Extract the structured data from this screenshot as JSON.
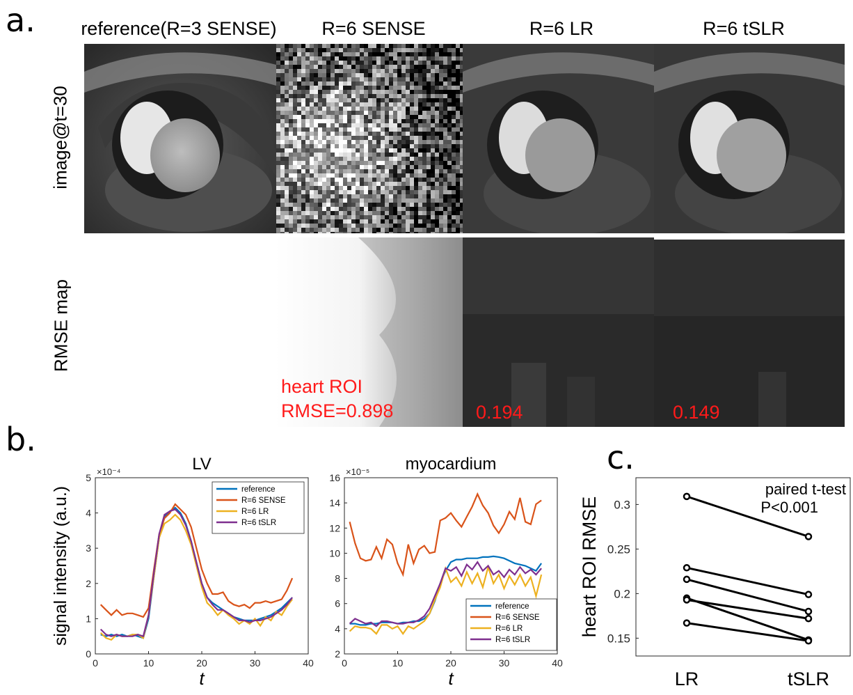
{
  "panel_a": {
    "letter": "a.",
    "column_titles": [
      "reference(R=3 SENSE)",
      "R=6 SENSE",
      "R=6 LR",
      "R=6 tSLR"
    ],
    "row_labels": [
      "image@t=30",
      "RMSE map"
    ],
    "roi_label": "heart ROI",
    "rmse_values": [
      "RMSE=0.898",
      "0.194",
      "0.149"
    ]
  },
  "panel_b": {
    "letter": "b."
  },
  "panel_c": {
    "letter": "c."
  },
  "colors": {
    "reference": "#0072BD",
    "sense": "#D95319",
    "lr": "#EDB120",
    "tslr": "#7E2F8E",
    "annotation_red": "#ff1a1a"
  },
  "chart_data": [
    {
      "type": "line",
      "title": "LV",
      "xlabel": "t",
      "ylabel": "signal intensity (a.u.)",
      "exponent_label": "×10⁻⁴",
      "xlim": [
        0,
        40
      ],
      "ylim": [
        0,
        5
      ],
      "xticks": [
        0,
        10,
        20,
        30,
        40
      ],
      "yticks": [
        0,
        1,
        2,
        3,
        4,
        5
      ],
      "legend_position": "top-right",
      "x": [
        1,
        2,
        3,
        4,
        5,
        6,
        7,
        8,
        9,
        10,
        11,
        12,
        13,
        14,
        15,
        16,
        17,
        18,
        19,
        20,
        21,
        22,
        23,
        24,
        25,
        26,
        27,
        28,
        29,
        30,
        31,
        32,
        33,
        34,
        35,
        36,
        37
      ],
      "series": [
        {
          "name": "reference",
          "color": "#0072BD",
          "values": [
            0.55,
            0.5,
            0.55,
            0.5,
            0.55,
            0.5,
            0.55,
            0.5,
            0.45,
            1.0,
            2.2,
            3.3,
            3.9,
            4.05,
            4.15,
            4.0,
            3.7,
            3.2,
            2.6,
            2.0,
            1.6,
            1.45,
            1.35,
            1.25,
            1.15,
            1.05,
            1.0,
            0.95,
            0.95,
            0.95,
            1.0,
            1.05,
            1.1,
            1.2,
            1.3,
            1.45,
            1.6
          ]
        },
        {
          "name": "R=6 SENSE",
          "color": "#D95319",
          "values": [
            1.4,
            1.25,
            1.1,
            1.25,
            1.1,
            1.15,
            1.15,
            1.1,
            1.05,
            1.3,
            2.4,
            3.4,
            3.85,
            4.0,
            4.25,
            4.1,
            3.95,
            3.6,
            3.0,
            2.4,
            2.0,
            1.7,
            1.7,
            1.75,
            1.5,
            1.4,
            1.35,
            1.4,
            1.3,
            1.45,
            1.45,
            1.5,
            1.45,
            1.5,
            1.55,
            1.8,
            2.15
          ]
        },
        {
          "name": "R=6 LR",
          "color": "#EDB120",
          "values": [
            0.6,
            0.45,
            0.4,
            0.55,
            0.5,
            0.5,
            0.55,
            0.55,
            0.45,
            1.1,
            2.2,
            3.3,
            3.7,
            3.8,
            3.95,
            3.8,
            3.5,
            3.1,
            2.5,
            1.9,
            1.45,
            1.3,
            1.1,
            1.25,
            1.1,
            1.0,
            0.85,
            0.95,
            0.85,
            1.0,
            0.8,
            1.05,
            0.95,
            1.2,
            1.1,
            1.35,
            1.55
          ]
        },
        {
          "name": "R=6 tSLR",
          "color": "#7E2F8E",
          "values": [
            0.7,
            0.55,
            0.5,
            0.55,
            0.5,
            0.5,
            0.5,
            0.55,
            0.5,
            1.1,
            2.3,
            3.4,
            3.95,
            4.05,
            4.1,
            3.95,
            3.65,
            3.2,
            2.6,
            2.0,
            1.6,
            1.4,
            1.25,
            1.25,
            1.15,
            1.05,
            0.95,
            0.95,
            0.9,
            0.95,
            0.95,
            1.0,
            1.05,
            1.15,
            1.25,
            1.4,
            1.6
          ]
        }
      ]
    },
    {
      "type": "line",
      "title": "myocardium",
      "xlabel": "t",
      "ylabel": "",
      "exponent_label": "×10⁻⁵",
      "xlim": [
        0,
        40
      ],
      "ylim": [
        2,
        16
      ],
      "xticks": [
        0,
        10,
        20,
        30,
        40
      ],
      "yticks": [
        2,
        4,
        6,
        8,
        10,
        12,
        14,
        16
      ],
      "legend_position": "bottom-right",
      "x": [
        1,
        2,
        3,
        4,
        5,
        6,
        7,
        8,
        9,
        10,
        11,
        12,
        13,
        14,
        15,
        16,
        17,
        18,
        19,
        20,
        21,
        22,
        23,
        24,
        25,
        26,
        27,
        28,
        29,
        30,
        31,
        32,
        33,
        34,
        35,
        36,
        37
      ],
      "series": [
        {
          "name": "reference",
          "color": "#0072BD",
          "values": [
            4.4,
            4.4,
            4.3,
            4.3,
            4.4,
            4.4,
            4.5,
            4.5,
            4.5,
            4.4,
            4.5,
            4.5,
            4.6,
            4.6,
            4.8,
            5.2,
            6.2,
            7.6,
            8.6,
            9.3,
            9.5,
            9.5,
            9.6,
            9.6,
            9.6,
            9.7,
            9.7,
            9.75,
            9.7,
            9.6,
            9.4,
            9.2,
            9.1,
            9.0,
            8.8,
            8.6,
            9.2
          ]
        },
        {
          "name": "R=6 SENSE",
          "color": "#D95319",
          "values": [
            12.5,
            10.8,
            9.6,
            9.4,
            9.5,
            10.5,
            9.6,
            11.1,
            10.7,
            9.2,
            8.3,
            10.7,
            9.2,
            10.3,
            10.6,
            10.0,
            10.1,
            12.6,
            12.8,
            13.2,
            12.6,
            12.1,
            12.9,
            13.7,
            14.7,
            13.8,
            13.2,
            12.2,
            11.6,
            12.3,
            13.3,
            12.7,
            14.4,
            12.5,
            12.3,
            13.9,
            14.2
          ]
        },
        {
          "name": "R=6 LR",
          "color": "#EDB120",
          "values": [
            3.8,
            4.2,
            4.1,
            4.1,
            4.0,
            3.6,
            4.3,
            4.3,
            4.0,
            4.2,
            3.6,
            4.2,
            4.0,
            4.3,
            4.6,
            5.2,
            6.3,
            7.3,
            8.8,
            7.7,
            8.1,
            7.4,
            8.5,
            7.6,
            8.4,
            7.3,
            8.9,
            7.6,
            8.3,
            7.2,
            8.2,
            7.5,
            8.3,
            7.4,
            8.1,
            6.6,
            8.3
          ]
        },
        {
          "name": "R=6 tSLR",
          "color": "#7E2F8E",
          "values": [
            4.4,
            4.8,
            4.6,
            4.4,
            4.5,
            4.2,
            4.6,
            4.6,
            4.5,
            4.4,
            4.4,
            4.5,
            4.5,
            4.7,
            5.0,
            5.6,
            6.6,
            7.6,
            8.8,
            8.6,
            8.9,
            8.2,
            9.1,
            8.7,
            9.3,
            8.6,
            9.0,
            8.3,
            8.6,
            8.1,
            8.7,
            8.3,
            8.9,
            8.4,
            8.7,
            8.3,
            8.8
          ]
        }
      ]
    },
    {
      "type": "scatter",
      "title": "",
      "xlabel": "",
      "ylabel": "heart ROI RMSE",
      "categories": [
        "LR",
        "tSLR"
      ],
      "ylim": [
        0.13,
        0.33
      ],
      "yticks": [
        0.15,
        0.2,
        0.25,
        0.3
      ],
      "ytick_labels": [
        "0.15",
        "0.2",
        "0.25",
        "0.3"
      ],
      "annotation": [
        "paired t-test",
        "P<0.001"
      ],
      "pairs": [
        {
          "LR": 0.309,
          "tSLR": 0.264
        },
        {
          "LR": 0.229,
          "tSLR": 0.199
        },
        {
          "LR": 0.216,
          "tSLR": 0.18
        },
        {
          "LR": 0.195,
          "tSLR": 0.148
        },
        {
          "LR": 0.193,
          "tSLR": 0.172
        },
        {
          "LR": 0.167,
          "tSLR": 0.147
        }
      ]
    }
  ]
}
